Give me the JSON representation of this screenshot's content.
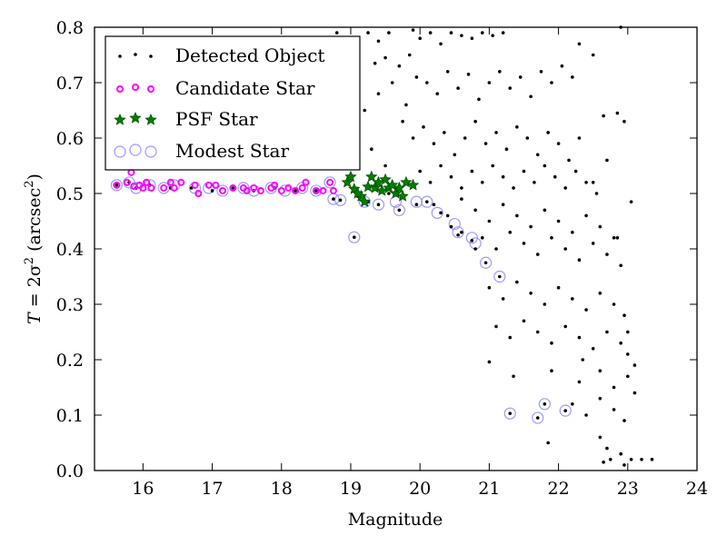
{
  "chart_data": {
    "type": "scatter",
    "title": "",
    "xlabel": "Magnitude",
    "ylabel_main": "T",
    "ylabel_eq": " = 2σ",
    "ylabel_sup": "2",
    "ylabel_units": " (arcsec",
    "ylabel_units_sup": "2",
    "ylabel_close": ")",
    "xlim": [
      15.3,
      24
    ],
    "ylim": [
      0.0,
      0.8
    ],
    "xticks": [
      16,
      17,
      18,
      19,
      20,
      21,
      22,
      23,
      24
    ],
    "xtick_labels": [
      "16",
      "17",
      "18",
      "19",
      "20",
      "21",
      "22",
      "23",
      "24"
    ],
    "yticks": [
      0.0,
      0.1,
      0.2,
      0.3,
      0.4,
      0.5,
      0.6,
      0.7,
      0.8
    ],
    "ytick_labels": [
      "0.0",
      "0.1",
      "0.2",
      "0.3",
      "0.4",
      "0.5",
      "0.6",
      "0.7",
      "0.8"
    ],
    "grid": false,
    "legend_position": "top-left",
    "series": [
      {
        "name": "Detected Object",
        "marker": "dot",
        "color": "#000000",
        "points": [
          [
            15.62,
            0.515
          ],
          [
            15.8,
            0.52
          ],
          [
            15.9,
            0.51
          ],
          [
            16.1,
            0.515
          ],
          [
            16.4,
            0.51
          ],
          [
            16.7,
            0.51
          ],
          [
            17.0,
            0.505
          ],
          [
            17.3,
            0.51
          ],
          [
            17.6,
            0.505
          ],
          [
            17.9,
            0.51
          ],
          [
            18.2,
            0.505
          ],
          [
            18.5,
            0.505
          ],
          [
            18.75,
            0.49
          ],
          [
            18.85,
            0.488
          ],
          [
            19.05,
            0.421
          ],
          [
            19.1,
            0.495
          ],
          [
            19.25,
            0.485
          ],
          [
            19.4,
            0.48
          ],
          [
            19.55,
            0.5
          ],
          [
            19.7,
            0.47
          ],
          [
            19.95,
            0.48
          ],
          [
            20.1,
            0.485
          ],
          [
            20.3,
            0.465
          ],
          [
            20.45,
            0.44
          ],
          [
            20.55,
            0.425
          ],
          [
            20.6,
            0.43
          ],
          [
            20.75,
            0.415
          ],
          [
            20.8,
            0.4
          ],
          [
            20.95,
            0.375
          ],
          [
            21.15,
            0.35
          ],
          [
            21.3,
            0.103
          ],
          [
            21.7,
            0.095
          ],
          [
            21.8,
            0.12
          ],
          [
            22.1,
            0.108
          ],
          [
            18.8,
            0.79
          ],
          [
            19.0,
            0.76
          ],
          [
            19.1,
            0.77
          ],
          [
            19.25,
            0.79
          ],
          [
            19.4,
            0.775
          ],
          [
            19.55,
            0.79
          ],
          [
            19.5,
            0.745
          ],
          [
            19.35,
            0.735
          ],
          [
            19.7,
            0.73
          ],
          [
            19.85,
            0.75
          ],
          [
            19.9,
            0.795
          ],
          [
            20.0,
            0.78
          ],
          [
            20.15,
            0.79
          ],
          [
            20.3,
            0.77
          ],
          [
            20.45,
            0.79
          ],
          [
            20.6,
            0.785
          ],
          [
            20.75,
            0.78
          ],
          [
            20.9,
            0.79
          ],
          [
            21.05,
            0.785
          ],
          [
            21.2,
            0.79
          ],
          [
            19.05,
            0.7
          ],
          [
            19.2,
            0.65
          ],
          [
            19.4,
            0.68
          ],
          [
            19.6,
            0.7
          ],
          [
            19.8,
            0.66
          ],
          [
            19.95,
            0.71
          ],
          [
            20.1,
            0.7
          ],
          [
            20.25,
            0.68
          ],
          [
            20.4,
            0.72
          ],
          [
            20.55,
            0.69
          ],
          [
            20.7,
            0.715
          ],
          [
            20.85,
            0.67
          ],
          [
            21.0,
            0.7
          ],
          [
            21.15,
            0.72
          ],
          [
            21.3,
            0.69
          ],
          [
            21.45,
            0.71
          ],
          [
            21.6,
            0.675
          ],
          [
            21.75,
            0.72
          ],
          [
            21.9,
            0.7
          ],
          [
            22.05,
            0.73
          ],
          [
            22.2,
            0.71
          ],
          [
            19.1,
            0.6
          ],
          [
            19.3,
            0.58
          ],
          [
            19.5,
            0.55
          ],
          [
            19.75,
            0.63
          ],
          [
            19.9,
            0.6
          ],
          [
            20.05,
            0.62
          ],
          [
            20.2,
            0.59
          ],
          [
            20.35,
            0.61
          ],
          [
            20.5,
            0.57
          ],
          [
            20.65,
            0.6
          ],
          [
            20.8,
            0.63
          ],
          [
            20.95,
            0.59
          ],
          [
            21.1,
            0.61
          ],
          [
            21.25,
            0.58
          ],
          [
            21.4,
            0.62
          ],
          [
            21.55,
            0.6
          ],
          [
            21.7,
            0.57
          ],
          [
            21.85,
            0.61
          ],
          [
            22.0,
            0.59
          ],
          [
            22.15,
            0.56
          ],
          [
            22.3,
            0.6
          ],
          [
            20.0,
            0.54
          ],
          [
            20.15,
            0.52
          ],
          [
            20.3,
            0.55
          ],
          [
            20.45,
            0.53
          ],
          [
            20.6,
            0.51
          ],
          [
            20.75,
            0.54
          ],
          [
            20.9,
            0.52
          ],
          [
            21.05,
            0.55
          ],
          [
            21.2,
            0.53
          ],
          [
            21.35,
            0.51
          ],
          [
            21.5,
            0.54
          ],
          [
            21.65,
            0.52
          ],
          [
            21.8,
            0.55
          ],
          [
            21.95,
            0.53
          ],
          [
            22.1,
            0.51
          ],
          [
            22.25,
            0.54
          ],
          [
            22.4,
            0.52
          ],
          [
            22.55,
            0.5
          ],
          [
            20.2,
            0.48
          ],
          [
            20.4,
            0.46
          ],
          [
            20.6,
            0.49
          ],
          [
            20.8,
            0.47
          ],
          [
            21.0,
            0.45
          ],
          [
            21.2,
            0.48
          ],
          [
            21.4,
            0.46
          ],
          [
            21.6,
            0.44
          ],
          [
            21.8,
            0.47
          ],
          [
            22.0,
            0.45
          ],
          [
            22.2,
            0.43
          ],
          [
            22.4,
            0.46
          ],
          [
            22.6,
            0.44
          ],
          [
            22.8,
            0.42
          ],
          [
            20.9,
            0.42
          ],
          [
            21.1,
            0.4
          ],
          [
            21.3,
            0.43
          ],
          [
            21.5,
            0.41
          ],
          [
            21.7,
            0.39
          ],
          [
            21.9,
            0.42
          ],
          [
            22.1,
            0.4
          ],
          [
            22.3,
            0.38
          ],
          [
            22.5,
            0.41
          ],
          [
            22.7,
            0.39
          ],
          [
            22.9,
            0.37
          ],
          [
            21.0,
            0.33
          ],
          [
            21.2,
            0.31
          ],
          [
            21.4,
            0.34
          ],
          [
            21.6,
            0.32
          ],
          [
            21.8,
            0.3
          ],
          [
            22.0,
            0.33
          ],
          [
            22.2,
            0.31
          ],
          [
            22.4,
            0.29
          ],
          [
            22.6,
            0.32
          ],
          [
            22.8,
            0.3
          ],
          [
            22.95,
            0.28
          ],
          [
            21.1,
            0.26
          ],
          [
            21.3,
            0.24
          ],
          [
            21.5,
            0.27
          ],
          [
            21.7,
            0.25
          ],
          [
            21.9,
            0.23
          ],
          [
            22.1,
            0.26
          ],
          [
            22.3,
            0.24
          ],
          [
            22.5,
            0.22
          ],
          [
            22.7,
            0.25
          ],
          [
            22.9,
            0.23
          ],
          [
            23.0,
            0.21
          ],
          [
            21.0,
            0.196
          ],
          [
            21.35,
            0.17
          ],
          [
            21.9,
            0.18
          ],
          [
            22.3,
            0.16
          ],
          [
            22.6,
            0.18
          ],
          [
            22.8,
            0.15
          ],
          [
            23.0,
            0.17
          ],
          [
            23.1,
            0.19
          ],
          [
            22.2,
            0.12
          ],
          [
            22.4,
            0.1
          ],
          [
            22.6,
            0.13
          ],
          [
            22.8,
            0.11
          ],
          [
            22.95,
            0.09
          ],
          [
            23.1,
            0.14
          ],
          [
            21.85,
            0.05
          ],
          [
            22.6,
            0.06
          ],
          [
            22.7,
            0.04
          ],
          [
            22.75,
            0.02
          ],
          [
            22.9,
            0.03
          ],
          [
            22.95,
            0.01
          ],
          [
            23.05,
            0.02
          ],
          [
            23.2,
            0.02
          ],
          [
            23.35,
            0.02
          ],
          [
            22.65,
            0.015
          ],
          [
            22.3,
            0.77
          ],
          [
            22.5,
            0.75
          ],
          [
            22.65,
            0.64
          ],
          [
            22.85,
            0.645
          ],
          [
            22.9,
            0.8
          ],
          [
            23.05,
            0.485
          ],
          [
            22.85,
            0.42
          ],
          [
            22.5,
            0.52
          ],
          [
            22.7,
            0.56
          ],
          [
            22.95,
            0.63
          ],
          [
            23.0,
            0.25
          ],
          [
            22.35,
            0.2
          ]
        ]
      },
      {
        "name": "Candidate Star",
        "marker": "small-circle",
        "color": "#ff00ff",
        "points": [
          [
            15.62,
            0.515
          ],
          [
            15.77,
            0.52
          ],
          [
            15.83,
            0.538
          ],
          [
            15.87,
            0.513
          ],
          [
            15.95,
            0.515
          ],
          [
            16.0,
            0.51
          ],
          [
            16.05,
            0.52
          ],
          [
            16.12,
            0.51
          ],
          [
            16.3,
            0.51
          ],
          [
            16.4,
            0.52
          ],
          [
            16.45,
            0.51
          ],
          [
            16.55,
            0.52
          ],
          [
            16.75,
            0.515
          ],
          [
            16.8,
            0.5
          ],
          [
            16.95,
            0.515
          ],
          [
            17.05,
            0.515
          ],
          [
            17.15,
            0.505
          ],
          [
            17.3,
            0.51
          ],
          [
            17.45,
            0.51
          ],
          [
            17.5,
            0.505
          ],
          [
            17.6,
            0.51
          ],
          [
            17.7,
            0.505
          ],
          [
            17.85,
            0.51
          ],
          [
            17.9,
            0.515
          ],
          [
            18.0,
            0.505
          ],
          [
            18.1,
            0.51
          ],
          [
            18.2,
            0.505
          ],
          [
            18.3,
            0.51
          ],
          [
            18.35,
            0.52
          ],
          [
            18.5,
            0.505
          ],
          [
            18.6,
            0.505
          ],
          [
            18.7,
            0.52
          ],
          [
            18.75,
            0.505
          ]
        ]
      },
      {
        "name": "PSF Star",
        "marker": "star",
        "color": "#008000",
        "points": [
          [
            18.95,
            0.52
          ],
          [
            19.0,
            0.53
          ],
          [
            19.05,
            0.508
          ],
          [
            19.15,
            0.495
          ],
          [
            19.25,
            0.512
          ],
          [
            19.3,
            0.53
          ],
          [
            19.35,
            0.51
          ],
          [
            19.4,
            0.52
          ],
          [
            19.45,
            0.505
          ],
          [
            19.5,
            0.525
          ],
          [
            19.55,
            0.51
          ],
          [
            19.6,
            0.515
          ],
          [
            19.65,
            0.5
          ],
          [
            19.7,
            0.51
          ],
          [
            19.75,
            0.495
          ],
          [
            19.8,
            0.52
          ],
          [
            19.9,
            0.515
          ],
          [
            19.2,
            0.485
          ],
          [
            19.1,
            0.5
          ]
        ]
      },
      {
        "name": "Modest Star",
        "marker": "open-circle",
        "color": "#8888ff",
        "points": [
          [
            15.62,
            0.515
          ],
          [
            15.8,
            0.52
          ],
          [
            15.9,
            0.51
          ],
          [
            16.1,
            0.515
          ],
          [
            16.3,
            0.51
          ],
          [
            16.45,
            0.515
          ],
          [
            16.75,
            0.51
          ],
          [
            16.95,
            0.51
          ],
          [
            17.15,
            0.505
          ],
          [
            17.45,
            0.51
          ],
          [
            17.6,
            0.505
          ],
          [
            17.85,
            0.51
          ],
          [
            18.05,
            0.505
          ],
          [
            18.3,
            0.51
          ],
          [
            18.5,
            0.505
          ],
          [
            18.7,
            0.52
          ],
          [
            18.75,
            0.49
          ],
          [
            18.85,
            0.488
          ],
          [
            19.05,
            0.421
          ],
          [
            19.2,
            0.485
          ],
          [
            19.4,
            0.48
          ],
          [
            19.65,
            0.485
          ],
          [
            19.7,
            0.47
          ],
          [
            19.95,
            0.485
          ],
          [
            20.1,
            0.485
          ],
          [
            20.25,
            0.465
          ],
          [
            20.5,
            0.445
          ],
          [
            20.55,
            0.43
          ],
          [
            20.75,
            0.42
          ],
          [
            20.8,
            0.41
          ],
          [
            20.95,
            0.375
          ],
          [
            21.15,
            0.35
          ],
          [
            21.3,
            0.103
          ],
          [
            21.7,
            0.095
          ],
          [
            21.8,
            0.12
          ],
          [
            22.1,
            0.108
          ]
        ]
      }
    ]
  }
}
